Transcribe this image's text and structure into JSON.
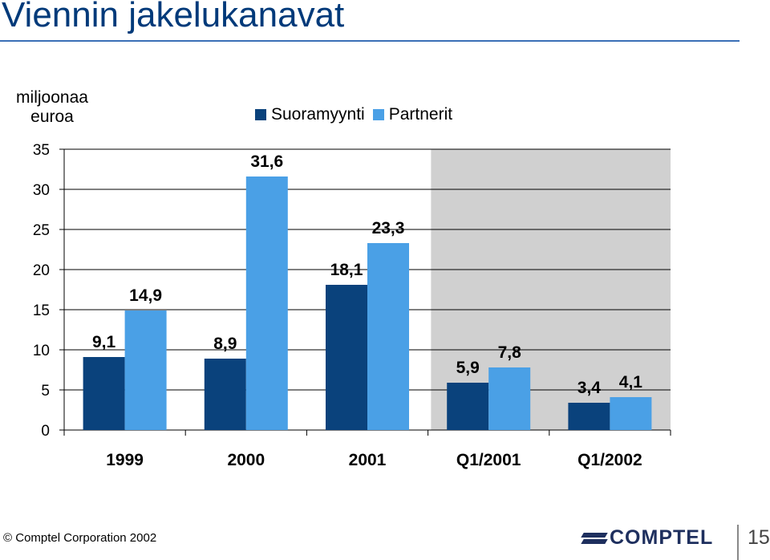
{
  "header": {
    "title": "Viennin jakelukanavat"
  },
  "units_label": "miljoonaa euroa",
  "legend": [
    {
      "name": "Suoramyynti",
      "color": "#0a427c"
    },
    {
      "name": "Partnerit",
      "color": "#4aa0e6"
    }
  ],
  "chart_data": {
    "type": "bar",
    "title": "Viennin jakelukanavat",
    "ylabel": "miljoonaa euroa",
    "xlabel": "",
    "ylim": [
      0,
      35
    ],
    "yticks": [
      0,
      5,
      10,
      15,
      20,
      25,
      30,
      35
    ],
    "grid": true,
    "legend_position": "top",
    "shaded_categories": [
      "Q1/2001",
      "Q1/2002"
    ],
    "categories": [
      "1999",
      "2000",
      "2001",
      "Q1/2001",
      "Q1/2002"
    ],
    "series": [
      {
        "name": "Suoramyynti",
        "values": [
          9.1,
          8.9,
          18.1,
          5.9,
          3.4
        ],
        "labels": [
          "9,1",
          "8,9",
          "18,1",
          "5,9",
          "3,4"
        ]
      },
      {
        "name": "Partnerit",
        "values": [
          14.9,
          31.6,
          23.3,
          7.8,
          4.1
        ],
        "labels": [
          "14,9",
          "31,6",
          "23,3",
          "7,8",
          "4,1"
        ]
      }
    ]
  },
  "footer": {
    "copyright_symbol": "©",
    "company": "Comptel Corporation 2002",
    "logo_text": "COMPTEL",
    "page_number": "15"
  }
}
